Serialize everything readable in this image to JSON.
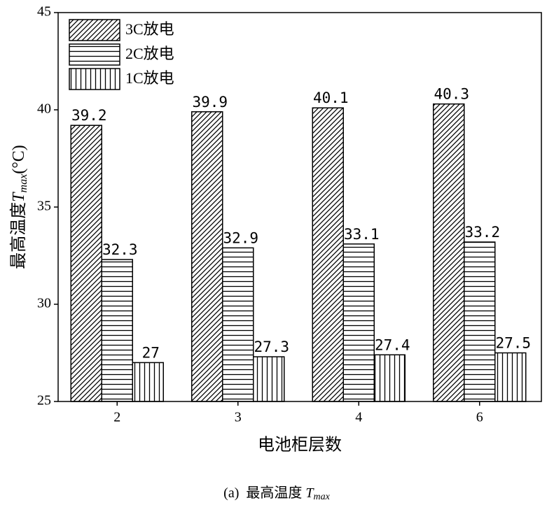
{
  "chart_data": {
    "type": "bar",
    "ylabel": [
      "最高温度",
      "T",
      "max",
      "(°C)"
    ],
    "xlabel": "电池柜层数",
    "caption": [
      "(a)  最高温度 ",
      "T",
      "max"
    ],
    "categories": [
      "2",
      "3",
      "4",
      "6"
    ],
    "series": [
      {
        "name": "3C放电",
        "color": "#000000",
        "hatch": "diagonal",
        "values": [
          39.2,
          39.9,
          40.1,
          40.3
        ]
      },
      {
        "name": "2C放电",
        "color": "#000000",
        "hatch": "horizontal",
        "values": [
          32.3,
          32.9,
          33.1,
          33.2
        ]
      },
      {
        "name": "1C放电",
        "color": "#000000",
        "hatch": "vertical",
        "values": [
          27,
          27.3,
          27.4,
          27.5
        ]
      }
    ],
    "ylim": [
      25,
      45
    ],
    "yticks": [
      25,
      30,
      35,
      40,
      45
    ],
    "legend": "upper left",
    "grid": false
  }
}
